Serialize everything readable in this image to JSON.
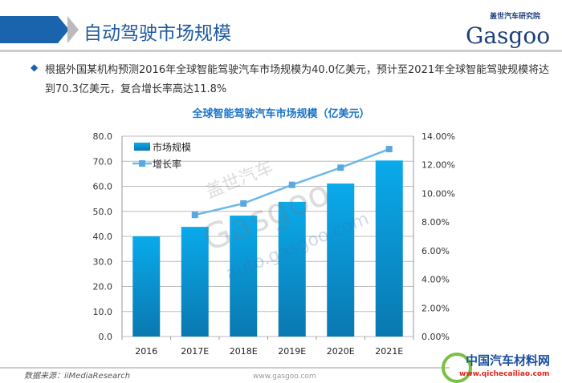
{
  "header": {
    "title": "自动驾驶市场规模",
    "logo_top": "盖世汽车研究院",
    "logo_main": "Gasgoo"
  },
  "summary": "根据外国某机构预测2016年全球智能驾驶汽车市场规模为40.0亿美元，预计至2021年全球智能驾驶规模将达到70.3亿美元，复合增长率高达11.8%",
  "chart_data": {
    "type": "bar+line",
    "title": "全球智能驾驶汽车市场规模（亿美元）",
    "categories": [
      "2016",
      "2017E",
      "2018E",
      "2019E",
      "2020E",
      "2021E"
    ],
    "series": [
      {
        "name": "市场规模",
        "type": "bar",
        "axis": "left",
        "values": [
          40.0,
          43.8,
          48.3,
          53.8,
          61.1,
          70.3
        ],
        "color": "#0a9ad8"
      },
      {
        "name": "增长率",
        "type": "line",
        "axis": "right",
        "values": [
          null,
          8.5,
          9.3,
          10.6,
          11.8,
          13.1
        ],
        "color": "#6cb8ea"
      }
    ],
    "ylim": [
      0,
      80
    ],
    "yticks": [
      "0.0",
      "10.0",
      "20.0",
      "30.0",
      "40.0",
      "50.0",
      "60.0",
      "70.0",
      "80.0"
    ],
    "y2lim": [
      0,
      14
    ],
    "y2ticks": [
      "0.00%",
      "2.00%",
      "4.00%",
      "6.00%",
      "8.00%",
      "10.00%",
      "12.00%",
      "14.00%"
    ],
    "grid": true,
    "legend": "top-left"
  },
  "watermark": {
    "cn": "盖世汽车",
    "en": "Gasgoo",
    "url": "auto.gasgoo.com"
  },
  "footer": {
    "source": "数据来源：iiMediaResearch",
    "site": "www.gasgoo.com",
    "badge_cn": "中国汽车材料网",
    "badge_url": "www.qichecailiao.com"
  }
}
